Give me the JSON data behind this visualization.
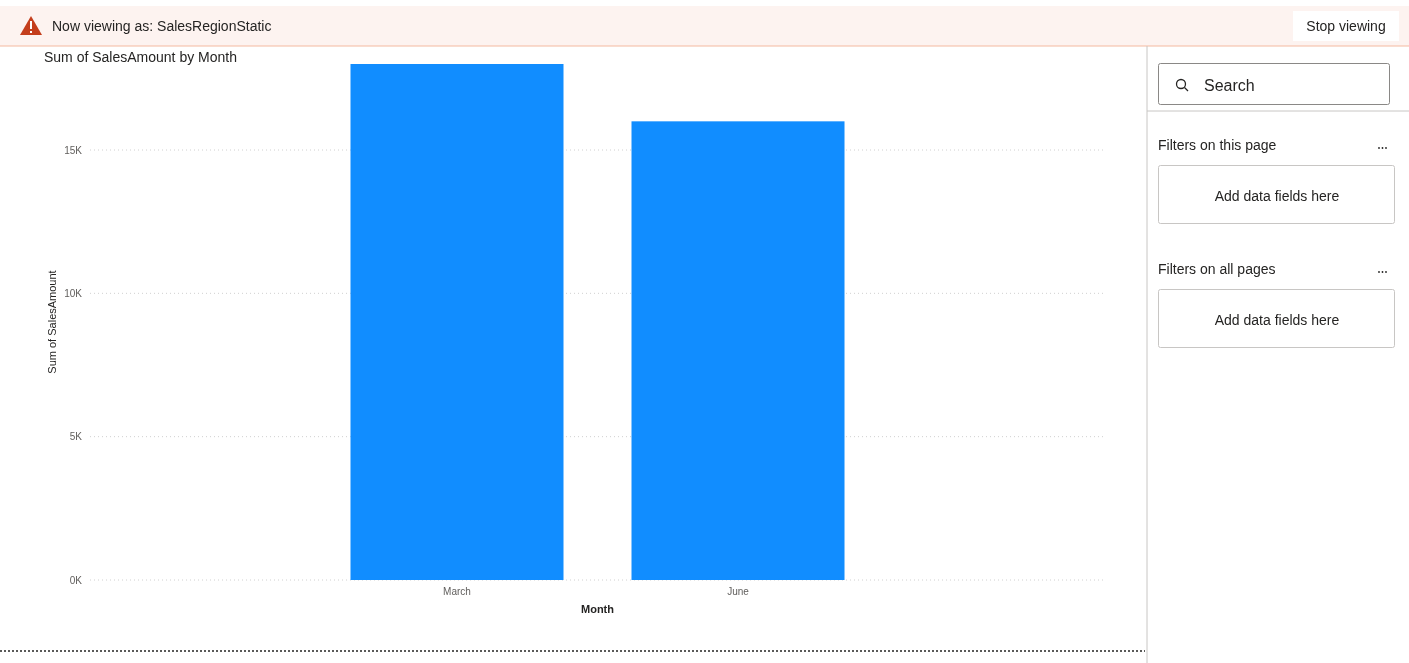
{
  "chart_data": {
    "type": "bar",
    "title": "Sum of SalesAmount by Month",
    "xlabel": "Month",
    "ylabel": "Sum of SalesAmount",
    "categories": [
      "March",
      "June"
    ],
    "values": [
      18000,
      16000
    ],
    "color": "#118dff",
    "ylim": [
      0,
      18000
    ],
    "yticks": [
      {
        "value": 0,
        "label": "0K"
      },
      {
        "value": 5000,
        "label": "5K"
      },
      {
        "value": 10000,
        "label": "10K"
      },
      {
        "value": 15000,
        "label": "15K"
      }
    ],
    "grid": "y",
    "annotations": [
      "Now viewing as: SalesRegionStatic",
      "Stop viewing",
      "Search",
      "Filters on this page",
      "Add data fields here",
      "Filters on all pages",
      "Add data fields here"
    ]
  }
}
